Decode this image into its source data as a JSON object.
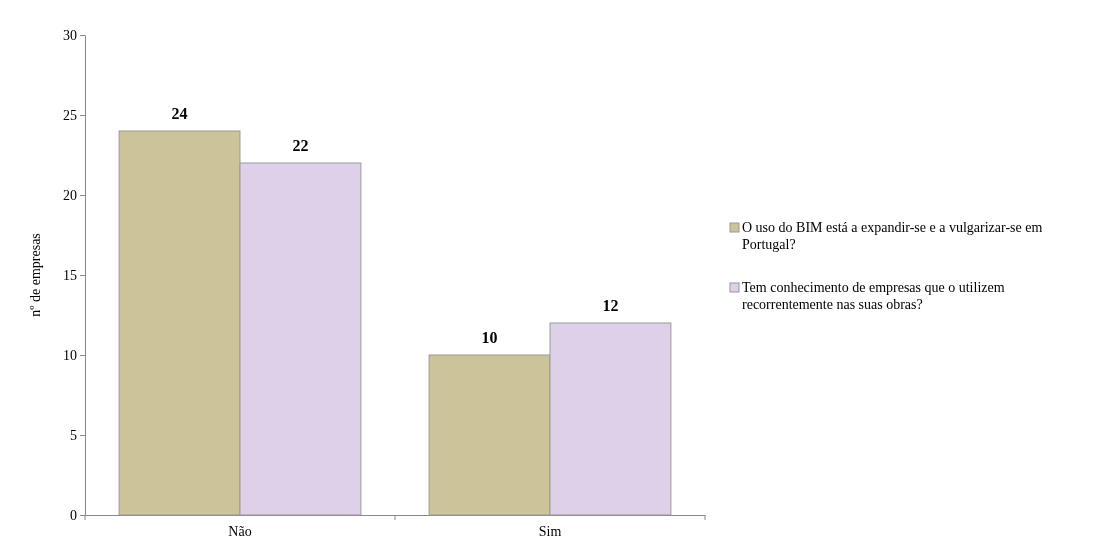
{
  "chart_data": {
    "type": "bar",
    "ylabel": "nº de empresas",
    "categories": [
      "Não",
      "Sim"
    ],
    "series": [
      {
        "name": "O uso do BIM está a expandir-se e a vulgarizar-se em Portugal?",
        "color": "#cdc399",
        "values": [
          24,
          10
        ]
      },
      {
        "name": "Tem conhecimento de empresas que o utilizem recorrentemente nas suas obras?",
        "color": "#ddd0e8",
        "values": [
          22,
          12
        ]
      }
    ],
    "ylim": [
      0,
      30
    ],
    "yticks": [
      0,
      5,
      10,
      15,
      20,
      25,
      30
    ],
    "data_labels": true,
    "legend": "right",
    "grid": false
  }
}
